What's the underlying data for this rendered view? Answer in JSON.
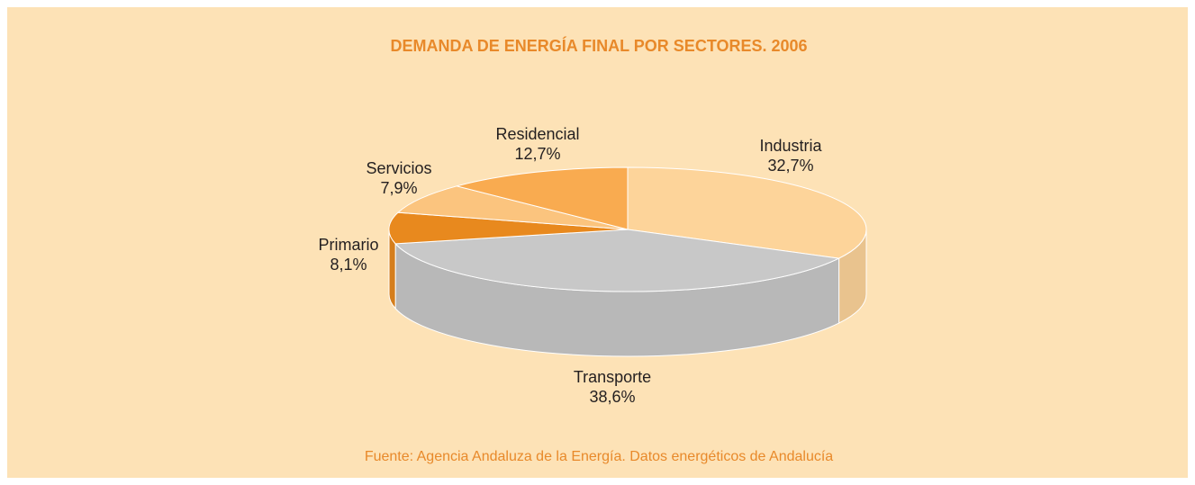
{
  "chart_data": {
    "type": "pie",
    "title": "DEMANDA DE ENERGÍA FINAL POR SECTORES. 2006",
    "source": "Fuente: Agencia Andaluza de la Energía. Datos energéticos de Andalucía",
    "categories": [
      "Industria",
      "Transporte",
      "Primario",
      "Servicios",
      "Residencial"
    ],
    "values": [
      32.7,
      38.6,
      8.1,
      7.9,
      12.7
    ],
    "value_labels": [
      "32,7%",
      "38,6%",
      "8,1%",
      "7,9%",
      "12,7%"
    ],
    "colors": [
      "#fdd49a",
      "#c8c8c8",
      "#e8891e",
      "#fbc47e",
      "#f9ab50"
    ]
  }
}
